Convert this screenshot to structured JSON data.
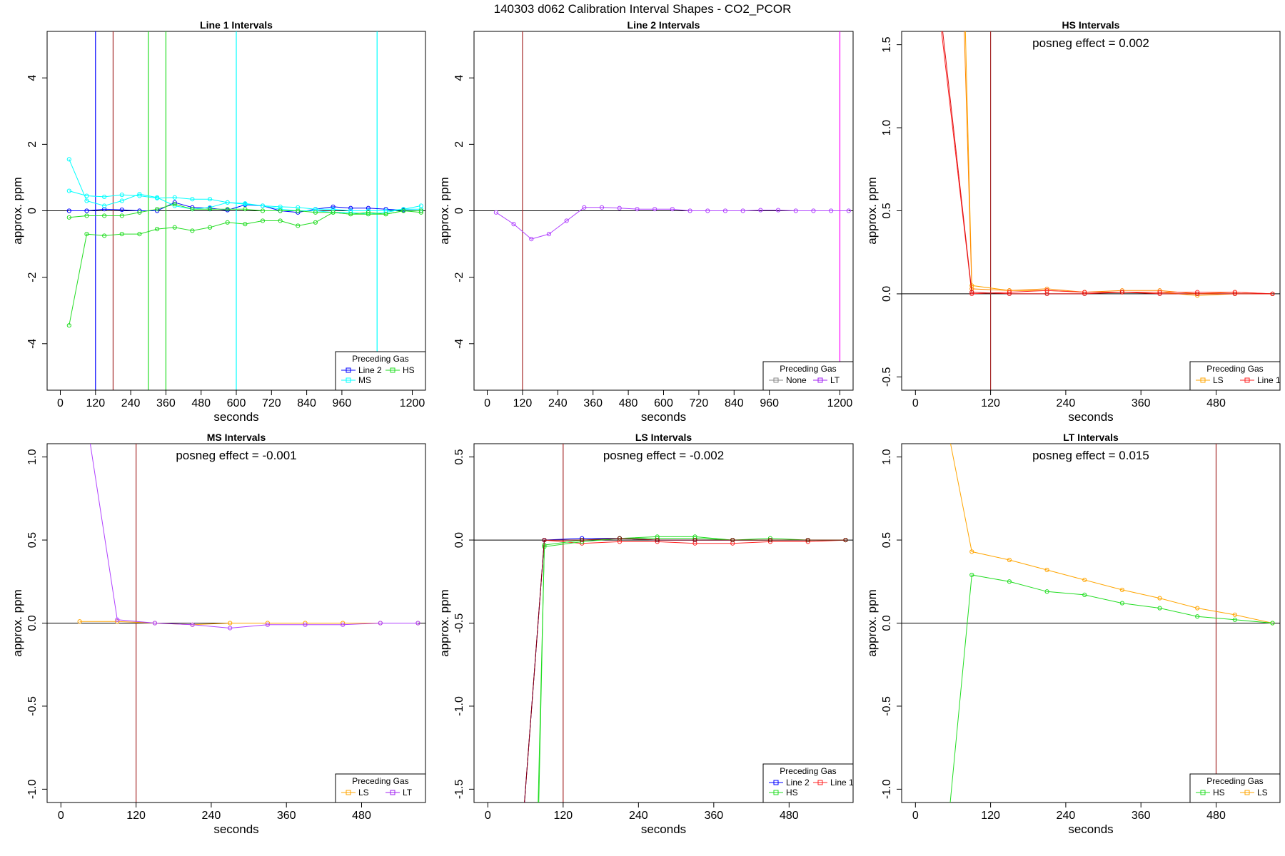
{
  "figure": {
    "title": "140303  d062   Calibration Interval Shapes - CO2_PCOR"
  },
  "chart_data": [
    {
      "type": "line",
      "title": "Line 1 Intervals",
      "xlabel": "seconds",
      "ylabel": "approx. ppm",
      "xlim": [
        -45,
        1245
      ],
      "ylim": [
        -5.4,
        5.4
      ],
      "x_ticks": [
        0,
        120,
        240,
        360,
        480,
        600,
        720,
        840,
        960,
        1200
      ],
      "y_ticks": [
        -4,
        -2,
        0,
        2,
        4
      ],
      "zero_line": true,
      "vlines": [
        {
          "x": 120,
          "color": "#0000ff"
        },
        {
          "x": 180,
          "color": "#a52a2a"
        },
        {
          "x": 300,
          "color": "#22dd22"
        },
        {
          "x": 360,
          "color": "#22dd22"
        },
        {
          "x": 600,
          "color": "#00ffff"
        },
        {
          "x": 1080,
          "color": "#00ffff"
        }
      ],
      "annotation": "",
      "legend": {
        "title": "Preceding Gas",
        "position": "bottom-right",
        "entries": [
          {
            "label": "Line 2",
            "color": "#0000ff"
          },
          {
            "label": "HS",
            "color": "#22dd22"
          },
          {
            "label": "MS",
            "color": "#00ffff"
          }
        ]
      },
      "series": [
        {
          "color": "#0000ff",
          "x": [
            30,
            90,
            150,
            210,
            270,
            330,
            390,
            450,
            510,
            570,
            630,
            690,
            750,
            810,
            870,
            930,
            990,
            1050,
            1110,
            1170,
            1230
          ],
          "y": [
            0.0,
            0.0,
            0.05,
            0.03,
            0.0,
            0.0,
            0.25,
            0.1,
            0.08,
            0.02,
            0.18,
            0.15,
            0.0,
            -0.05,
            0.05,
            0.12,
            0.08,
            0.08,
            0.05,
            0.02,
            0.0
          ]
        },
        {
          "color": "#00ffff",
          "x": [
            30,
            90,
            150,
            210,
            270,
            330,
            390,
            450,
            510,
            570,
            630,
            690,
            750,
            810,
            870,
            930,
            990,
            1050,
            1110,
            1170,
            1230
          ],
          "y": [
            1.55,
            0.3,
            0.15,
            0.3,
            0.5,
            0.4,
            0.15,
            0.05,
            0.1,
            0.25,
            0.2,
            0.15,
            0.05,
            0.0,
            0.0,
            -0.05,
            -0.05,
            -0.1,
            -0.05,
            0.05,
            0.15
          ]
        },
        {
          "color": "#00ffff",
          "x": [
            30,
            90,
            150,
            210,
            270,
            330,
            390,
            450,
            510,
            570,
            630,
            690,
            750,
            810,
            870,
            930,
            990,
            1050,
            1110,
            1170,
            1230
          ],
          "y": [
            0.6,
            0.45,
            0.42,
            0.48,
            0.45,
            0.38,
            0.4,
            0.35,
            0.35,
            0.25,
            0.22,
            0.15,
            0.12,
            0.1,
            0.05,
            0.05,
            0.0,
            0.0,
            0.0,
            0.05,
            0.05
          ]
        },
        {
          "color": "#22dd22",
          "x": [
            30,
            90,
            150,
            210,
            270,
            330,
            390,
            450,
            510,
            570,
            630,
            690,
            750,
            810,
            870,
            930,
            990,
            1050,
            1110,
            1170,
            1230
          ],
          "y": [
            -3.45,
            -0.7,
            -0.75,
            -0.7,
            -0.7,
            -0.55,
            -0.5,
            -0.6,
            -0.5,
            -0.35,
            -0.4,
            -0.3,
            -0.3,
            -0.45,
            -0.35,
            -0.05,
            -0.1,
            -0.05,
            -0.1,
            0.0,
            0.0
          ]
        },
        {
          "color": "#22dd22",
          "x": [
            30,
            90,
            150,
            210,
            270,
            330,
            390,
            450,
            510,
            570,
            630,
            690,
            750,
            810,
            870,
            930,
            990,
            1050,
            1110,
            1170,
            1230
          ],
          "y": [
            -0.2,
            -0.15,
            -0.15,
            -0.15,
            -0.05,
            0.05,
            0.2,
            0.05,
            0.05,
            0.05,
            0.05,
            0.0,
            0.0,
            0.0,
            -0.05,
            -0.05,
            -0.1,
            -0.1,
            -0.1,
            0.0,
            -0.05
          ]
        }
      ]
    },
    {
      "type": "line",
      "title": "Line 2 Intervals",
      "xlabel": "seconds",
      "ylabel": "approx. ppm",
      "xlim": [
        -45,
        1245
      ],
      "ylim": [
        -5.4,
        5.4
      ],
      "x_ticks": [
        0,
        120,
        240,
        360,
        480,
        600,
        720,
        840,
        960,
        1200
      ],
      "y_ticks": [
        -4,
        -2,
        0,
        2,
        4
      ],
      "zero_line": true,
      "vlines": [
        {
          "x": 120,
          "color": "#a52a2a"
        },
        {
          "x": 1200,
          "color": "#ff00ff"
        }
      ],
      "annotation": "",
      "legend": {
        "title": "Preceding Gas",
        "position": "bottom-right",
        "entries": [
          {
            "label": "None",
            "color": "#888888"
          },
          {
            "label": "LT",
            "color": "#a020f0"
          }
        ]
      },
      "series": [
        {
          "color": "#b040ff",
          "x": [
            30,
            90,
            150,
            210,
            270,
            330,
            390,
            450,
            510,
            570,
            630,
            690,
            750,
            810,
            870,
            930,
            990,
            1050,
            1110,
            1170,
            1230
          ],
          "y": [
            -0.05,
            -0.4,
            -0.85,
            -0.7,
            -0.3,
            0.1,
            0.1,
            0.08,
            0.05,
            0.05,
            0.05,
            0.0,
            0.0,
            0.0,
            0.0,
            0.02,
            0.02,
            0.0,
            0.0,
            0.0,
            0.0
          ]
        }
      ]
    },
    {
      "type": "line",
      "title": "HS Intervals",
      "xlabel": "seconds",
      "ylabel": "approx. ppm",
      "xlim": [
        -22,
        582
      ],
      "ylim": [
        -0.58,
        1.58
      ],
      "x_ticks": [
        0,
        120,
        240,
        360,
        480
      ],
      "y_ticks": [
        -0.5,
        0.0,
        0.5,
        1.0,
        1.5
      ],
      "zero_line": true,
      "vlines": [
        {
          "x": 120,
          "color": "#a52a2a"
        }
      ],
      "annotation": "posneg effect = 0.002",
      "legend": {
        "title": "Preceding Gas",
        "position": "bottom-right",
        "entries": [
          {
            "label": "LS",
            "color": "#ffa500"
          },
          {
            "label": "Line 1",
            "color": "#ff2222"
          }
        ]
      },
      "series": [
        {
          "color": "#ffa500",
          "x": [
            79,
            90,
            150,
            210,
            270,
            330,
            390,
            450,
            510,
            570
          ],
          "y": [
            1.7,
            0.05,
            0.02,
            0.02,
            0.01,
            0.01,
            0.01,
            -0.01,
            0.0,
            0.0
          ]
        },
        {
          "color": "#ff8800",
          "x": [
            77,
            90,
            150,
            210,
            270,
            330,
            390,
            450,
            510,
            570
          ],
          "y": [
            1.7,
            0.03,
            0.02,
            0.03,
            0.01,
            0.02,
            0.02,
            0.0,
            0.01,
            0.0
          ]
        },
        {
          "color": "#ff2222",
          "x": [
            38,
            90,
            150,
            210,
            270,
            330,
            390,
            450,
            510,
            570
          ],
          "y": [
            1.7,
            0.0,
            0.01,
            0.02,
            0.01,
            0.01,
            0.01,
            0.01,
            0.01,
            0.0
          ]
        },
        {
          "color": "#dd1111",
          "x": [
            40,
            90,
            150,
            210,
            270,
            330,
            390,
            450,
            510,
            570
          ],
          "y": [
            1.7,
            0.01,
            0.0,
            0.0,
            0.0,
            0.01,
            0.0,
            0.0,
            0.0,
            0.0
          ]
        }
      ]
    },
    {
      "type": "line",
      "title": "MS Intervals",
      "xlabel": "seconds",
      "ylabel": "approx. ppm",
      "xlim": [
        -22,
        582
      ],
      "ylim": [
        -1.08,
        1.08
      ],
      "x_ticks": [
        0,
        120,
        240,
        360,
        480
      ],
      "y_ticks": [
        -1.0,
        -0.5,
        0.0,
        0.5,
        1.0
      ],
      "zero_line": true,
      "vlines": [
        {
          "x": 120,
          "color": "#a52a2a"
        }
      ],
      "annotation": "posneg effect = -0.001",
      "legend": {
        "title": "Preceding Gas",
        "position": "bottom-right",
        "entries": [
          {
            "label": "LS",
            "color": "#ffa500"
          },
          {
            "label": "LT",
            "color": "#a020f0"
          }
        ]
      },
      "series": [
        {
          "color": "#ffa500",
          "x": [
            30,
            90,
            150,
            210,
            270,
            330,
            390,
            450,
            510,
            570
          ],
          "y": [
            0.01,
            0.01,
            0.0,
            -0.01,
            0.0,
            0.0,
            0.0,
            0.0,
            0.0,
            0.0
          ]
        },
        {
          "color": "#b040ff",
          "x": [
            46,
            90,
            150,
            210,
            270,
            330,
            390,
            450,
            510,
            570
          ],
          "y": [
            1.1,
            0.02,
            0.0,
            -0.01,
            -0.03,
            -0.01,
            -0.01,
            -0.01,
            0.0,
            0.0
          ]
        }
      ]
    },
    {
      "type": "line",
      "title": "LS Intervals",
      "xlabel": "seconds",
      "ylabel": "approx. ppm",
      "xlim": [
        -22,
        582
      ],
      "ylim": [
        -1.58,
        0.58
      ],
      "x_ticks": [
        0,
        120,
        240,
        360,
        480
      ],
      "y_ticks": [
        -1.5,
        -1.0,
        -0.5,
        0.0,
        0.5
      ],
      "zero_line": true,
      "vlines": [
        {
          "x": 120,
          "color": "#a52a2a"
        }
      ],
      "annotation": "posneg effect = -0.002",
      "legend": {
        "title": "Preceding Gas",
        "position": "bottom-right",
        "entries": [
          {
            "label": "Line 2",
            "color": "#0000ff"
          },
          {
            "label": "Line 1",
            "color": "#ff2222"
          },
          {
            "label": "HS",
            "color": "#22dd22"
          }
        ]
      },
      "series": [
        {
          "color": "#ff2222",
          "x": [
            58,
            90,
            150,
            210,
            270,
            330,
            390,
            450,
            510,
            570
          ],
          "y": [
            -1.6,
            0.0,
            -0.02,
            -0.01,
            -0.01,
            -0.02,
            -0.02,
            -0.01,
            -0.01,
            0.0
          ]
        },
        {
          "color": "#0000ff",
          "x": [
            58,
            90,
            150,
            210,
            270,
            330,
            390,
            450,
            510,
            570
          ],
          "y": [
            -1.6,
            0.0,
            0.01,
            0.01,
            0.0,
            0.0,
            0.0,
            0.0,
            0.0,
            0.0
          ]
        },
        {
          "color": "#22dd22",
          "x": [
            80,
            90,
            150,
            210,
            270,
            330,
            390,
            450,
            510,
            570
          ],
          "y": [
            -1.6,
            -0.04,
            -0.01,
            0.01,
            0.01,
            0.01,
            0.0,
            0.01,
            0.0,
            0.0
          ]
        },
        {
          "color": "#22dd22",
          "x": [
            81,
            90,
            150,
            210,
            270,
            330,
            390,
            450,
            510,
            570
          ],
          "y": [
            -1.6,
            -0.03,
            0.0,
            0.01,
            0.02,
            0.02,
            0.0,
            0.0,
            0.0,
            0.0
          ]
        },
        {
          "color": "#8b0000",
          "x": [
            58,
            90,
            150,
            210,
            270,
            330,
            390,
            450,
            510,
            570
          ],
          "y": [
            -1.6,
            0.0,
            0.0,
            0.01,
            0.0,
            0.0,
            0.0,
            0.0,
            0.0,
            0.0
          ]
        }
      ]
    },
    {
      "type": "line",
      "title": "LT Intervals",
      "xlabel": "seconds",
      "ylabel": "approx. ppm",
      "xlim": [
        -22,
        582
      ],
      "ylim": [
        -1.08,
        1.08
      ],
      "x_ticks": [
        0,
        120,
        240,
        360,
        480
      ],
      "y_ticks": [
        -1.0,
        -0.5,
        0.0,
        0.5,
        1.0
      ],
      "zero_line": true,
      "vlines": [
        {
          "x": 480,
          "color": "#a52a2a"
        }
      ],
      "annotation": "posneg effect = 0.015",
      "legend": {
        "title": "Preceding Gas",
        "position": "bottom-right",
        "entries": [
          {
            "label": "HS",
            "color": "#22dd22"
          },
          {
            "label": "LS",
            "color": "#ffa500"
          }
        ]
      },
      "series": [
        {
          "color": "#ffa500",
          "x": [
            55,
            90,
            150,
            210,
            270,
            330,
            390,
            450,
            510,
            570
          ],
          "y": [
            1.1,
            0.43,
            0.38,
            0.32,
            0.26,
            0.2,
            0.15,
            0.09,
            0.05,
            0.0
          ]
        },
        {
          "color": "#22dd22",
          "x": [
            55,
            90,
            150,
            210,
            270,
            330,
            390,
            450,
            510,
            570
          ],
          "y": [
            -1.1,
            0.29,
            0.25,
            0.19,
            0.17,
            0.12,
            0.09,
            0.04,
            0.02,
            0.0
          ]
        }
      ]
    }
  ]
}
